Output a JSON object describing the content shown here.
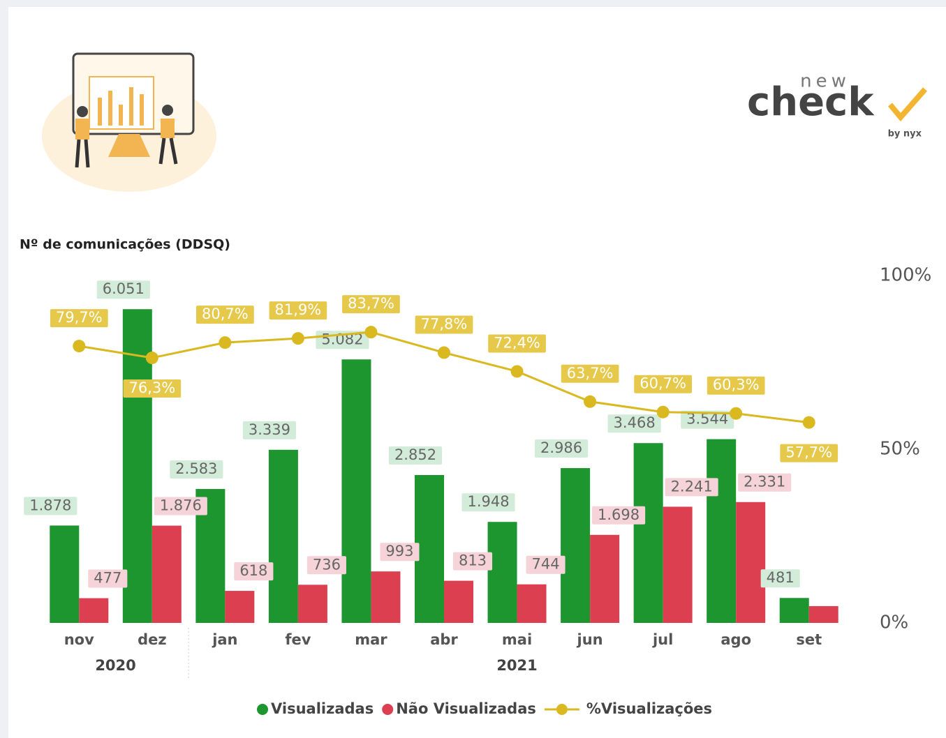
{
  "logo": {
    "top": "new",
    "main": "check",
    "sub": "by nyx"
  },
  "chart_data": {
    "type": "bar-line",
    "title": "Nº de comunicações (DDSQ)",
    "categories": [
      "nov",
      "dez",
      "jan",
      "fev",
      "mar",
      "abr",
      "mai",
      "jun",
      "jul",
      "ago",
      "set"
    ],
    "years": [
      "2020",
      "2020",
      "2021",
      "2021",
      "2021",
      "2021",
      "2021",
      "2021",
      "2021",
      "2021",
      "2021"
    ],
    "ylim": [
      0,
      6700
    ],
    "y2lim": [
      0,
      100
    ],
    "y2ticks": [
      {
        "value": 0,
        "label": "0%"
      },
      {
        "value": 50,
        "label": "50%"
      },
      {
        "value": 100,
        "label": "100%"
      }
    ],
    "legend": "bottom",
    "series": [
      {
        "name": "Visualizadas",
        "color": "#1e9630",
        "label_bg": "#d3ecd9",
        "values": [
          1878,
          6051,
          2583,
          3339,
          5082,
          2852,
          1948,
          2986,
          3468,
          3544,
          481
        ],
        "value_labels": [
          "1.878",
          "6.051",
          "2.583",
          "3.339",
          "5.082",
          "2.852",
          "1.948",
          "2.986",
          "3.468",
          "3.544",
          "481"
        ]
      },
      {
        "name": "Não Visualizadas",
        "color": "#dc4050",
        "label_bg": "#f5d3d8",
        "values": [
          477,
          1876,
          618,
          736,
          993,
          813,
          744,
          1698,
          2241,
          2331,
          324
        ],
        "value_labels": [
          "477",
          "1.876",
          "618",
          "736",
          "993",
          "813",
          "744",
          "1.698",
          "2.241",
          "2.331",
          null
        ]
      },
      {
        "name": "%Visualizações",
        "color": "#d9b820",
        "label_bg": "#e6c84a",
        "axis": "y2",
        "kind": "line",
        "values": [
          79.7,
          76.3,
          80.7,
          81.9,
          83.7,
          77.8,
          72.4,
          63.7,
          60.7,
          60.3,
          57.7
        ],
        "value_labels": [
          "79,7%",
          "76,3%",
          "80,7%",
          "81,9%",
          "83,7%",
          "77,8%",
          "72,4%",
          "63,7%",
          "60,7%",
          "60,3%",
          "57,7%"
        ]
      }
    ]
  }
}
